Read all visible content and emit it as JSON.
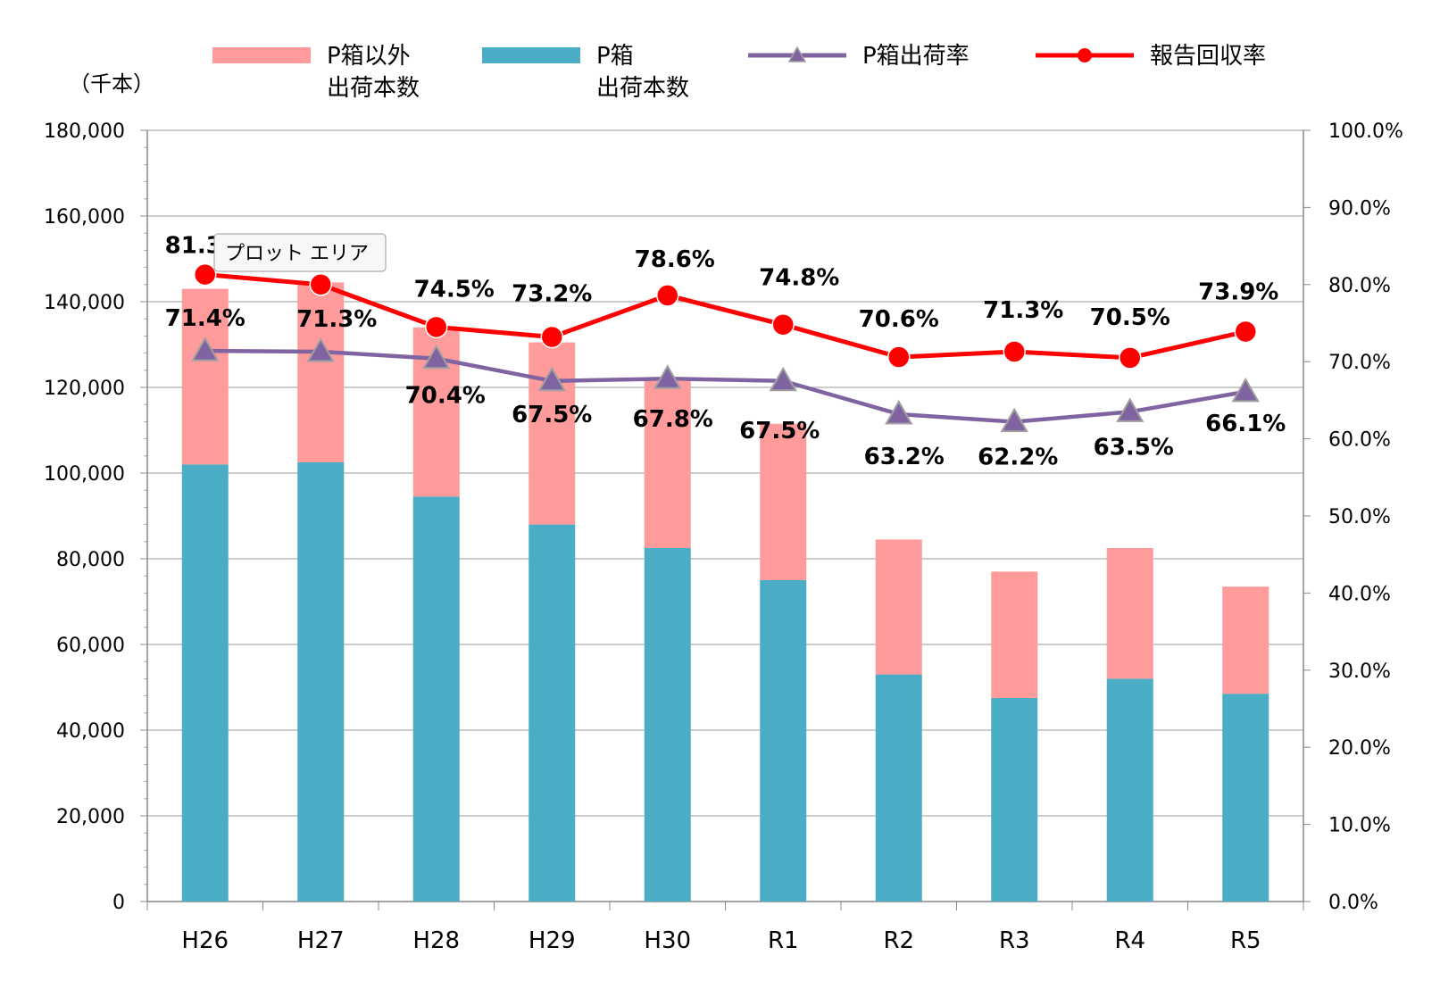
{
  "chart_data": {
    "type": "bar",
    "stacked": true,
    "categories": [
      "H26",
      "H27",
      "H28",
      "H29",
      "H30",
      "R1",
      "R2",
      "R3",
      "R4",
      "R5"
    ],
    "y_left_unit": "（千本）",
    "y_left_range": [
      0,
      180000
    ],
    "y_left_ticks": [
      "0",
      "20,000",
      "40,000",
      "60,000",
      "80,000",
      "100,000",
      "120,000",
      "140,000",
      "160,000",
      "180,000"
    ],
    "y_right_range": [
      0,
      100
    ],
    "y_right_ticks": [
      "0.0%",
      "10.0%",
      "20.0%",
      "30.0%",
      "40.0%",
      "50.0%",
      "60.0%",
      "70.0%",
      "80.0%",
      "90.0%",
      "100.0%"
    ],
    "grid": true,
    "legend_position": "top",
    "series": [
      {
        "key": "pbox",
        "name": [
          "P箱",
          "出荷本数"
        ],
        "kind": "bar",
        "axis": "left",
        "color": "#4BACC6",
        "values": [
          102000,
          102500,
          94500,
          88000,
          82500,
          75000,
          53000,
          47500,
          52000,
          48500
        ]
      },
      {
        "key": "other",
        "name": [
          "P箱以外",
          "出荷本数"
        ],
        "kind": "bar",
        "axis": "left",
        "color": "#FF9B9B",
        "values": [
          41000,
          42000,
          39500,
          42500,
          39000,
          36500,
          31500,
          29500,
          30500,
          25000
        ]
      },
      {
        "key": "pbox_rate",
        "name": [
          "P箱出荷率"
        ],
        "kind": "line",
        "axis": "right",
        "color": "#8064A2",
        "marker": "triangle",
        "values": [
          71.4,
          71.3,
          70.4,
          67.5,
          67.8,
          67.5,
          63.2,
          62.2,
          63.5,
          66.1
        ],
        "labels": [
          "71.4%",
          "71.3%",
          "70.4%",
          "67.5%",
          "67.8%",
          "67.5%",
          "63.2%",
          "62.2%",
          "63.5%",
          "66.1%"
        ]
      },
      {
        "key": "report_rate",
        "name": [
          "報告回収率"
        ],
        "kind": "line",
        "axis": "right",
        "color": "#FF0000",
        "marker": "circle",
        "values": [
          81.3,
          80.0,
          74.5,
          73.2,
          78.6,
          74.8,
          70.6,
          71.3,
          70.5,
          73.9
        ],
        "labels": [
          "81.3%",
          "",
          "74.5%",
          "73.2%",
          "78.6%",
          "74.8%",
          "70.6%",
          "71.3%",
          "70.5%",
          "73.9%"
        ]
      }
    ],
    "tooltip": "プロット エリア"
  }
}
